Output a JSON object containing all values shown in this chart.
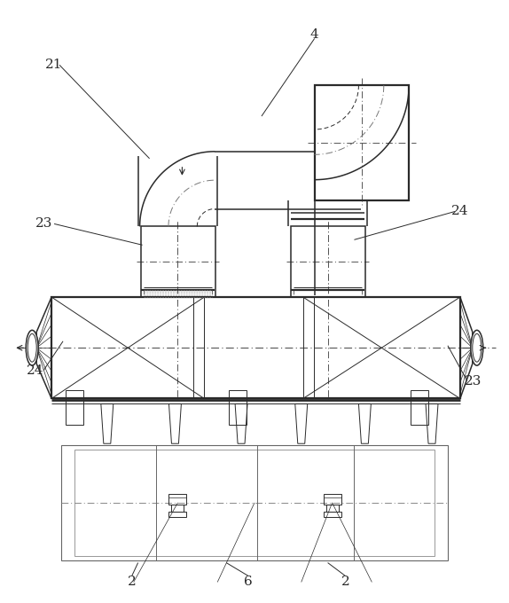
{
  "bg_color": "#ffffff",
  "lc": "#2a2a2a",
  "lc_dash": "#555555",
  "figsize": [
    5.74,
    6.8
  ],
  "dpi": 100
}
